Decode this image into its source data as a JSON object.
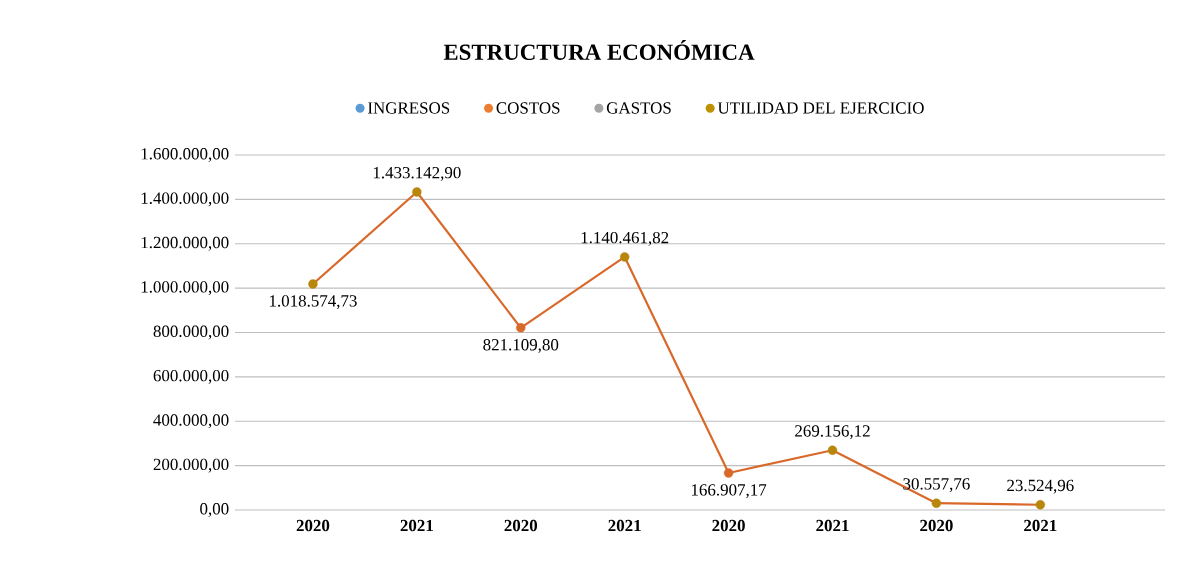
{
  "chart_data": {
    "type": "line",
    "title": "ESTRUCTURA ECONÓMICA",
    "categories": [
      "2020",
      "2021",
      "2020",
      "2021",
      "2020",
      "2021",
      "2020",
      "2021"
    ],
    "series": [
      {
        "color": "#d9692a",
        "colors": [
          "#b8860b",
          "#b8860b",
          "#d9692a",
          "#b8860b",
          "#d9692a",
          "#b8860b",
          "#b8860b",
          "#b8860b"
        ],
        "values": [
          1018574.73,
          1433142.9,
          821109.8,
          1140461.82,
          166907.17,
          269156.12,
          30557.76,
          23524.96
        ],
        "value_labels": [
          "1.018.574,73",
          "1.433.142,90",
          "821.109,80",
          "1.140.461,82",
          "166.907,17",
          "269.156,12",
          "30.557,76",
          "23.524,96"
        ]
      },
      {
        "name": "INGRESOS",
        "color": "#5b9bd5",
        "values": [
          null,
          null,
          null,
          null,
          null,
          null,
          null,
          null
        ]
      },
      {
        "name": "COSTOS",
        "color": "#ed7d31",
        "values": [
          null,
          null,
          null,
          null,
          null,
          null,
          null,
          null
        ]
      },
      {
        "name": "GASTOS",
        "color": "#a5a5a5",
        "values": [
          null,
          null,
          null,
          null,
          null,
          null,
          null,
          null
        ]
      },
      {
        "name": "UTILIDAD DEL EJERCICIO",
        "color": "#bf9000",
        "values": [
          null,
          null,
          null,
          null,
          null,
          null,
          null,
          null
        ]
      }
    ],
    "ylim": [
      0,
      1600000
    ],
    "yticks": [
      {
        "value": 0,
        "label": "0,00"
      },
      {
        "value": 200000,
        "label": "200.000,00"
      },
      {
        "value": 400000,
        "label": "400.000,00"
      },
      {
        "value": 600000,
        "label": "600.000,00"
      },
      {
        "value": 800000,
        "label": "800.000,00"
      },
      {
        "value": 1000000,
        "label": "1.000.000,00"
      },
      {
        "value": 1200000,
        "label": "1.200.000,00"
      },
      {
        "value": 1400000,
        "label": "1.400.000,00"
      },
      {
        "value": 1600000,
        "label": "1.600.000,00"
      }
    ],
    "grid": "y",
    "legend": "top",
    "marker": "circle",
    "line_style": "solid"
  }
}
